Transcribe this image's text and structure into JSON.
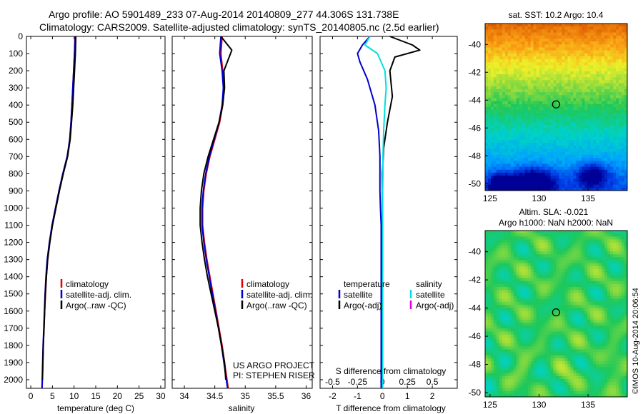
{
  "header": {
    "title_line1": "Argo profile: AO 5901489_233 07-Aug-2014 20140809_277 44.306S 131.738E",
    "title_line2": "Climatology: CARS2009. Satellite-adjusted climatology: synTS_20140805.nc (2.5d earlier)"
  },
  "colors": {
    "climatology": "#e00000",
    "satellite": "#0000cc",
    "argo": "#000000",
    "salinity_satellite": "#00e0e0",
    "salinity_argo": "#e000e0"
  },
  "chart_data": [
    {
      "id": "temperature",
      "type": "line",
      "xlabel": "temperature (deg C)",
      "xlim": [
        -1,
        31
      ],
      "xticks": [
        0,
        5,
        10,
        15,
        20,
        25,
        30
      ],
      "ylim": [
        2050,
        0
      ],
      "yticks": [
        0,
        100,
        200,
        300,
        400,
        500,
        600,
        700,
        800,
        900,
        1000,
        1100,
        1200,
        1300,
        1400,
        1500,
        1600,
        1700,
        1800,
        1900,
        2000
      ],
      "legend": [
        "climatology",
        "satellite-adj. clim.",
        "Argo(..raw -QC)"
      ],
      "series": [
        {
          "name": "climatology",
          "color": "#e00000",
          "x": [
            10.2,
            10.1,
            9.9,
            9.7,
            9.5,
            9.3,
            9.0,
            8.5,
            7.5,
            6.6,
            5.8,
            5.0,
            4.4,
            3.9,
            3.6,
            3.4,
            3.2,
            3.05,
            2.9,
            2.8,
            2.7,
            2.6
          ],
          "y": [
            0,
            100,
            200,
            300,
            400,
            500,
            600,
            700,
            800,
            900,
            1000,
            1100,
            1200,
            1300,
            1400,
            1500,
            1600,
            1700,
            1800,
            1900,
            2000,
            2050
          ]
        },
        {
          "name": "satellite-adj. clim.",
          "color": "#0000cc",
          "x": [
            10.3,
            10.1,
            9.9,
            9.7,
            9.5,
            9.3,
            9.0,
            8.4,
            7.4,
            6.5,
            5.7,
            4.9,
            4.3,
            3.8,
            3.5,
            3.3,
            3.15,
            3.0,
            2.85,
            2.75,
            2.65,
            2.6
          ],
          "y": [
            0,
            100,
            200,
            300,
            400,
            500,
            600,
            700,
            800,
            900,
            1000,
            1100,
            1200,
            1300,
            1400,
            1500,
            1600,
            1700,
            1800,
            1900,
            2000,
            2050
          ]
        },
        {
          "name": "Argo(..raw -QC)",
          "color": "#000000",
          "x": [
            10.4,
            10.3,
            10.1,
            9.9,
            9.7,
            9.4,
            9.1,
            8.5,
            7.5,
            6.6,
            5.8,
            5.0,
            4.4,
            3.9,
            3.6,
            3.35,
            3.2,
            3.05,
            2.9,
            2.8,
            2.7
          ],
          "y": [
            0,
            100,
            200,
            300,
            400,
            500,
            600,
            700,
            800,
            900,
            1000,
            1100,
            1200,
            1300,
            1400,
            1500,
            1600,
            1700,
            1800,
            1900,
            2000
          ]
        }
      ]
    },
    {
      "id": "salinity",
      "type": "line",
      "xlabel": "salinity",
      "xlim": [
        33.8,
        36.1
      ],
      "xticks": [
        34,
        34.5,
        35,
        35.5,
        36
      ],
      "xticklabels": [
        "34",
        "34.5",
        "35",
        "35.5",
        "36"
      ],
      "ylim": [
        2050,
        0
      ],
      "legend": [
        "climatology",
        "satellite-adj. clim.",
        "Argo(..raw -QC)"
      ],
      "annotation": [
        "US ARGO PROJECT",
        "PI: STEPHEN RISER"
      ],
      "series": [
        {
          "name": "climatology",
          "color": "#e00000",
          "x": [
            34.62,
            34.6,
            34.63,
            34.65,
            34.63,
            34.58,
            34.5,
            34.42,
            34.36,
            34.32,
            34.3,
            34.3,
            34.33,
            34.37,
            34.42,
            34.47,
            34.52,
            34.57,
            34.62,
            34.66,
            34.7,
            34.72
          ],
          "y": [
            0,
            100,
            200,
            300,
            400,
            500,
            600,
            700,
            800,
            900,
            1000,
            1100,
            1200,
            1300,
            1400,
            1500,
            1600,
            1700,
            1800,
            1900,
            2000,
            2050
          ]
        },
        {
          "name": "satellite-adj. clim.",
          "color": "#0000cc",
          "x": [
            34.6,
            34.58,
            34.62,
            34.64,
            34.62,
            34.57,
            34.49,
            34.41,
            34.35,
            34.31,
            34.29,
            34.29,
            34.32,
            34.36,
            34.41,
            34.46,
            34.51,
            34.56,
            34.61,
            34.65,
            34.69,
            34.71
          ],
          "y": [
            0,
            100,
            200,
            300,
            400,
            500,
            600,
            700,
            800,
            900,
            1000,
            1100,
            1200,
            1300,
            1400,
            1500,
            1600,
            1700,
            1800,
            1900,
            2000,
            2050
          ]
        },
        {
          "name": "Argo(..raw -QC)",
          "color": "#000000",
          "x": [
            34.6,
            34.78,
            34.65,
            34.66,
            34.63,
            34.57,
            34.48,
            34.39,
            34.32,
            34.28,
            34.26,
            34.26,
            34.29,
            34.33,
            34.38,
            34.44,
            34.5,
            34.56,
            34.61,
            34.66,
            34.68
          ],
          "y": [
            0,
            80,
            200,
            300,
            400,
            500,
            600,
            700,
            800,
            900,
            1000,
            1100,
            1200,
            1300,
            1400,
            1500,
            1600,
            1700,
            1800,
            1900,
            2000
          ]
        }
      ]
    },
    {
      "id": "difference",
      "type": "line",
      "xlabel": "T difference from climatology",
      "xlabel_top": "S difference from climatology",
      "xlim": [
        -2.5,
        3
      ],
      "xticks": [
        -2,
        -1,
        0,
        1,
        2
      ],
      "sticks": [
        -0.5,
        -0.25,
        0,
        0.25,
        0.5
      ],
      "sticklabels": [
        "-0.5",
        "-0.25",
        "0",
        "0.25",
        "0.5"
      ],
      "ylim": [
        2050,
        0
      ],
      "legend_left_title": "temperature",
      "legend_right_title": "salinity",
      "legend": [
        "satellite",
        "Argo(-adj)",
        "satellite",
        "Argo(-adj)"
      ],
      "series": [
        {
          "name": "T satellite",
          "color": "#0000cc",
          "x": [
            -0.5,
            -0.8,
            -1.0,
            -0.9,
            -0.6,
            -0.3,
            -0.15,
            -0.1,
            -0.1,
            -0.1,
            -0.08,
            -0.05,
            -0.05,
            -0.05,
            -0.05,
            -0.05,
            -0.05,
            -0.05,
            -0.05,
            -0.05,
            -0.05,
            -0.05
          ],
          "y": [
            0,
            50,
            100,
            150,
            250,
            400,
            550,
            700,
            800,
            900,
            1000,
            1100,
            1200,
            1300,
            1400,
            1500,
            1600,
            1700,
            1800,
            1900,
            2000,
            2050
          ]
        },
        {
          "name": "T Argo(-adj)",
          "color": "#000000",
          "x": [
            0.3,
            1.2,
            1.5,
            0.5,
            0.3,
            0.4,
            0.2,
            0.05,
            0.0,
            0.0,
            0.0,
            0.0,
            0.0,
            0.0,
            0.0,
            0.0,
            0.0,
            0.0,
            0.0,
            0.0,
            0.0
          ],
          "y": [
            0,
            50,
            80,
            120,
            200,
            350,
            500,
            650,
            800,
            900,
            1000,
            1100,
            1200,
            1300,
            1400,
            1500,
            1600,
            1700,
            1800,
            1900,
            2000
          ]
        },
        {
          "name": "S satellite",
          "color": "#00e0e0",
          "x": [
            -0.5,
            -0.7,
            -0.2,
            0.1,
            0.15,
            0.1,
            0.05,
            0.02,
            0.02,
            0.01,
            0.01,
            0.01,
            0.01,
            0.01,
            0.01,
            0.01,
            0.01,
            0.01,
            0.01,
            0.01,
            0.01,
            0.01
          ],
          "y": [
            0,
            50,
            100,
            200,
            300,
            400,
            550,
            700,
            800,
            900,
            1000,
            1100,
            1200,
            1300,
            1400,
            1500,
            1600,
            1700,
            1800,
            1900,
            2000,
            2050
          ]
        }
      ]
    },
    {
      "id": "sst_map",
      "type": "heatmap",
      "title": "sat. SST: 10.2 Argo: 10.4",
      "xlim": [
        124.5,
        139
      ],
      "ylim": [
        -50.5,
        -38.5
      ],
      "xticks": [
        125,
        130,
        135
      ],
      "yticks": [
        -40,
        -42,
        -44,
        -46,
        -48,
        -50
      ],
      "marker": {
        "lon": 131.738,
        "lat": -44.306
      }
    },
    {
      "id": "sla_map",
      "type": "heatmap",
      "title_line1": "Altim. SLA: -0.021",
      "title_line2": "Argo h1000: NaN h2000: NaN",
      "xlim": [
        124.5,
        139
      ],
      "ylim": [
        -50.3,
        -38.5
      ],
      "xticks": [
        125,
        130,
        135
      ],
      "yticks": [
        -40,
        -42,
        -44,
        -46,
        -48,
        -50
      ],
      "marker": {
        "lon": 131.738,
        "lat": -44.306
      }
    }
  ],
  "side_stamp": "©IMOS 10-Aug-2014 20:06:54"
}
